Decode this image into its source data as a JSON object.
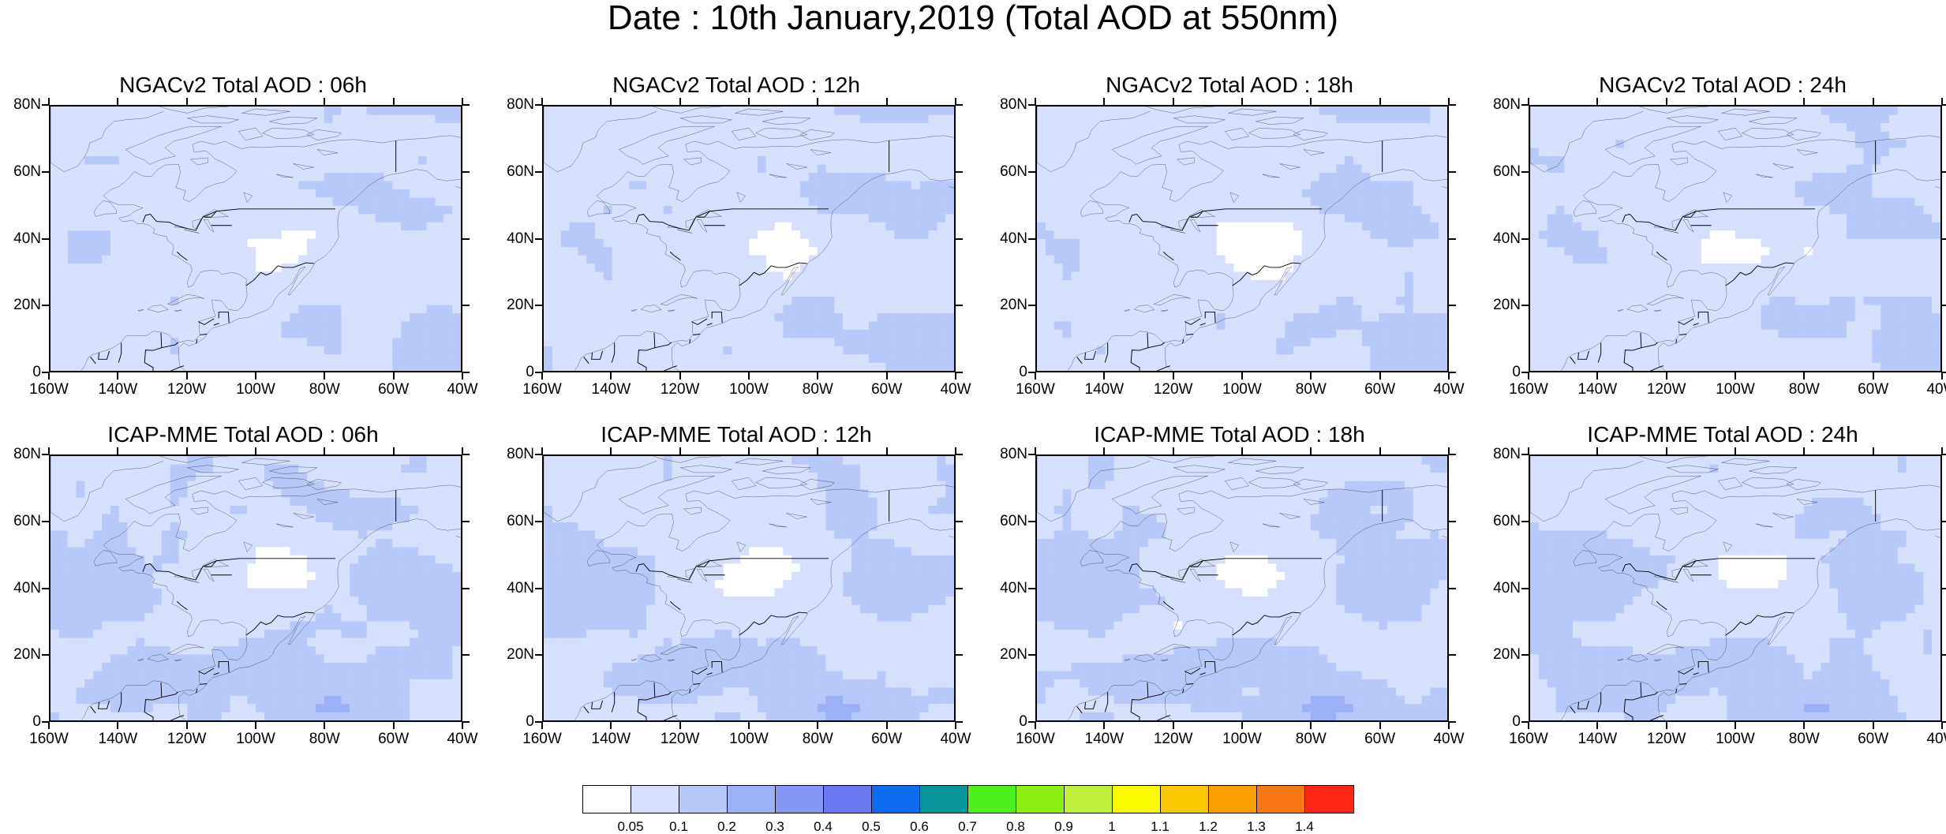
{
  "title": "Date : 10th January,2019 (Total AOD at 550nm)",
  "lat_labels": [
    "80N",
    "60N",
    "40N",
    "20N",
    "0"
  ],
  "lon_labels": [
    "160W",
    "140W",
    "120W",
    "100W",
    "80W",
    "60W",
    "40W"
  ],
  "panels": [
    {
      "title": "NGACv2 Total AOD : 06h",
      "model": "NGACv2",
      "hour": "06h"
    },
    {
      "title": "NGACv2 Total AOD : 12h",
      "model": "NGACv2",
      "hour": "12h"
    },
    {
      "title": "NGACv2 Total AOD : 18h",
      "model": "NGACv2",
      "hour": "18h"
    },
    {
      "title": "NGACv2 Total AOD : 24h",
      "model": "NGACv2",
      "hour": "24h"
    },
    {
      "title": "ICAP-MME Total AOD : 06h",
      "model": "ICAP-MME",
      "hour": "06h"
    },
    {
      "title": "ICAP-MME Total AOD : 12h",
      "model": "ICAP-MME",
      "hour": "12h"
    },
    {
      "title": "ICAP-MME Total AOD : 18h",
      "model": "ICAP-MME",
      "hour": "18h"
    },
    {
      "title": "ICAP-MME Total AOD : 24h",
      "model": "ICAP-MME",
      "hour": "24h"
    }
  ],
  "colorbar": {
    "colors": [
      "#ffffff",
      "#d6e0fc",
      "#b8c8fa",
      "#9cb0f8",
      "#8696f4",
      "#6d77f0",
      "#0f6cf0",
      "#06969a",
      "#4ef01c",
      "#8cf014",
      "#bef03c",
      "#fafa00",
      "#fac800",
      "#fa9f00",
      "#fa7814",
      "#fa2814"
    ],
    "labels": [
      "0.05",
      "0.1",
      "0.2",
      "0.3",
      "0.4",
      "0.5",
      "0.6",
      "0.7",
      "0.8",
      "0.9",
      "1",
      "1.1",
      "1.2",
      "1.3",
      "1.4"
    ]
  }
}
